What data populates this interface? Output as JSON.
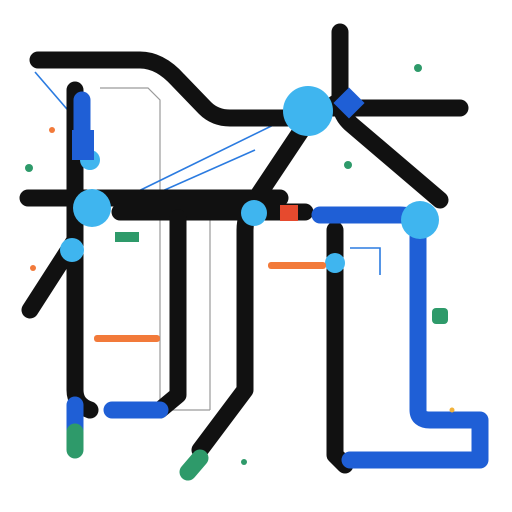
{
  "diagram": {
    "type": "transit-map",
    "labels": [],
    "colors": {
      "line_black": "#111111",
      "line_blue": "#1f5fd6",
      "line_green": "#2e9a6a",
      "station_cyan": "#3fb5ef",
      "accent_orange": "#f27a3a",
      "accent_red": "#e64a2e",
      "thin_blue": "#2b7be0",
      "thin_gray": "#9a9a9a"
    },
    "icons": [
      "map-pin-icon",
      "train-icon",
      "bus-icon",
      "compass-icon"
    ]
  }
}
